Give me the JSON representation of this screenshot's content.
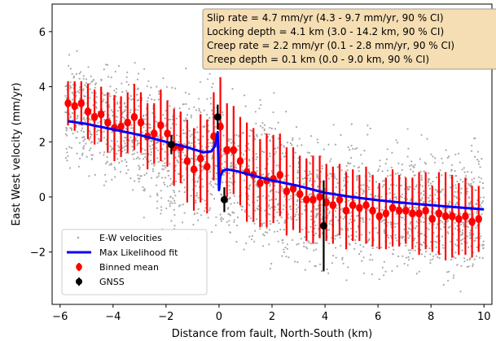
{
  "chart_data": {
    "type": "scatter",
    "xlabel": "Distance from fault, North-South (km)",
    "ylabel": "East West velocity (mm/yr)",
    "xlim": [
      -6.3,
      10.3
    ],
    "ylim": [
      -3.9,
      7.0
    ],
    "xticks": [
      -6,
      -4,
      -2,
      0,
      2,
      4,
      6,
      8,
      10
    ],
    "yticks": [
      -2,
      0,
      2,
      4,
      6
    ],
    "legend_position": "lower-left",
    "annotation": {
      "position": "top-right",
      "lines": [
        "Slip rate = 4.7 mm/yr (4.3 - 9.7 mm/yr, 90 % CI)",
        "Locking depth = 4.1 km (3.0 - 14.2 km, 90 % CI)",
        "Creep rate = 2.2 mm/yr (0.1 - 2.8 mm/yr, 90 % CI)",
        "Creep depth = 0.1 km (0.0 - 9.0 km, 90 % CI)"
      ]
    },
    "colors": {
      "velocities": "#a9a9a9",
      "fit": "#0000ff",
      "binned": "#ff0000",
      "gnss": "#000000",
      "annotation_bg": "#f5deb3"
    },
    "legend": [
      {
        "label": "E-W velocities",
        "marker": "dot",
        "color": "#a9a9a9"
      },
      {
        "label": "Max Likelihood fit",
        "marker": "line",
        "color": "#0000ff"
      },
      {
        "label": "Binned mean",
        "marker": "errorbar",
        "color": "#ff0000"
      },
      {
        "label": "GNSS",
        "marker": "errorbar",
        "color": "#000000"
      }
    ],
    "series": [
      {
        "name": "E-W velocities",
        "kind": "scatter_cloud",
        "x_range": [
          -5.8,
          10.0
        ],
        "trend_x": [
          -5.8,
          -4,
          -2,
          -1,
          -0.2,
          0.1,
          1,
          2,
          4,
          6,
          8,
          10
        ],
        "trend_mean": [
          3.2,
          2.6,
          1.6,
          1.3,
          1.9,
          1.0,
          0.7,
          0.3,
          -0.3,
          -0.4,
          -0.4,
          -0.6
        ],
        "trend_spread": [
          1.6,
          1.9,
          2.0,
          2.1,
          2.2,
          2.3,
          2.2,
          2.3,
          2.0,
          1.9,
          2.0,
          2.2
        ]
      },
      {
        "name": "Max Likelihood fit",
        "kind": "line",
        "x": [
          -5.7,
          -5,
          -4,
          -3,
          -2,
          -1.2,
          -0.6,
          -0.3,
          -0.15,
          -0.05,
          0.0,
          0.05,
          0.15,
          0.3,
          0.6,
          1,
          1.5,
          2,
          3,
          4,
          5,
          6,
          7,
          8,
          9,
          10
        ],
        "y": [
          2.75,
          2.65,
          2.45,
          2.25,
          2.0,
          1.8,
          1.62,
          1.65,
          1.85,
          2.35,
          0.25,
          0.75,
          0.95,
          1.0,
          0.95,
          0.85,
          0.72,
          0.6,
          0.4,
          0.15,
          0.0,
          -0.12,
          -0.22,
          -0.3,
          -0.38,
          -0.45
        ]
      },
      {
        "name": "Binned mean",
        "kind": "errorbar",
        "x": [
          -5.7,
          -5.45,
          -5.2,
          -4.95,
          -4.7,
          -4.45,
          -4.2,
          -3.95,
          -3.7,
          -3.45,
          -3.2,
          -2.95,
          -2.7,
          -2.45,
          -2.2,
          -1.95,
          -1.7,
          -1.45,
          -1.2,
          -0.95,
          -0.7,
          -0.45,
          -0.2,
          0.05,
          0.3,
          0.55,
          0.8,
          1.05,
          1.3,
          1.55,
          1.8,
          2.05,
          2.3,
          2.55,
          2.8,
          3.05,
          3.3,
          3.55,
          3.8,
          4.05,
          4.3,
          4.55,
          4.8,
          5.05,
          5.3,
          5.55,
          5.8,
          6.05,
          6.3,
          6.55,
          6.8,
          7.05,
          7.3,
          7.55,
          7.8,
          8.05,
          8.3,
          8.55,
          8.8,
          9.05,
          9.3,
          9.55,
          9.8
        ],
        "y": [
          3.4,
          3.3,
          3.4,
          3.1,
          2.9,
          3.0,
          2.7,
          2.5,
          2.55,
          2.7,
          2.9,
          2.7,
          2.2,
          2.3,
          2.6,
          2.3,
          1.8,
          1.8,
          1.3,
          1.0,
          1.4,
          1.1,
          2.2,
          2.55,
          1.7,
          1.7,
          1.3,
          0.9,
          0.8,
          0.5,
          0.6,
          0.65,
          0.8,
          0.2,
          0.3,
          0.1,
          -0.1,
          -0.1,
          0.0,
          -0.2,
          -0.3,
          -0.1,
          -0.5,
          -0.3,
          -0.4,
          -0.3,
          -0.5,
          -0.7,
          -0.6,
          -0.4,
          -0.5,
          -0.5,
          -0.6,
          -0.6,
          -0.5,
          -0.8,
          -0.6,
          -0.7,
          -0.7,
          -0.8,
          -0.7,
          -0.9,
          -0.8
        ],
        "err": [
          0.8,
          0.9,
          0.8,
          1.0,
          1.0,
          1.0,
          1.1,
          1.2,
          1.1,
          1.1,
          1.2,
          1.1,
          1.2,
          1.1,
          1.3,
          1.2,
          1.4,
          1.3,
          1.5,
          1.5,
          1.6,
          1.7,
          1.6,
          1.8,
          1.7,
          1.6,
          1.6,
          1.8,
          1.7,
          1.6,
          1.7,
          1.6,
          1.5,
          1.6,
          1.5,
          1.4,
          1.5,
          1.6,
          1.5,
          1.4,
          1.4,
          1.3,
          1.4,
          1.3,
          1.2,
          1.4,
          1.3,
          1.2,
          1.3,
          1.4,
          1.3,
          1.2,
          1.3,
          1.5,
          1.4,
          1.2,
          1.5,
          1.6,
          1.5,
          1.3,
          1.4,
          1.3,
          1.2
        ]
      },
      {
        "name": "GNSS",
        "kind": "errorbar",
        "x": [
          -1.8,
          -0.05,
          0.2,
          3.95
        ],
        "y": [
          1.9,
          2.9,
          -0.1,
          -1.05
        ],
        "err": [
          0.35,
          0.45,
          0.45,
          1.65
        ]
      }
    ]
  }
}
